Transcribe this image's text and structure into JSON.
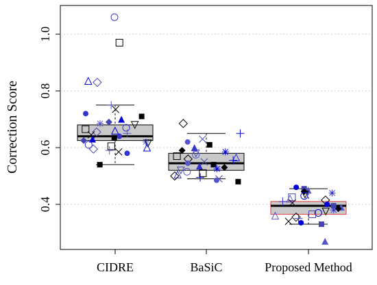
{
  "chart_data": {
    "type": "box",
    "title": "",
    "xlabel": "",
    "ylabel": "Correction Score",
    "ylim": [
      0.24,
      1.1
    ],
    "yticks": [
      0.4,
      0.6,
      0.8,
      1.0
    ],
    "ytick_labels": [
      "0.4",
      "0.6",
      "0.8",
      "1.0"
    ],
    "grid": "horizontal dotted",
    "categories": [
      "CIDRE",
      "BaSiC",
      "Proposed Method"
    ],
    "boxes": [
      {
        "category": "CIDRE",
        "whisker_low": 0.54,
        "q1": 0.625,
        "median": 0.64,
        "q3": 0.68,
        "whisker_high": 0.75,
        "fill": "#c0c0c0",
        "border": "#000000"
      },
      {
        "category": "BaSiC",
        "whisker_low": 0.49,
        "q1": 0.52,
        "median": 0.545,
        "q3": 0.58,
        "whisker_high": 0.65,
        "fill": "#c0c0c0",
        "border": "#000000"
      },
      {
        "category": "Proposed Method",
        "whisker_low": 0.33,
        "q1": 0.365,
        "median": 0.395,
        "q3": 0.41,
        "whisker_high": 0.455,
        "fill": "#c0c0c0",
        "border": "#e04040"
      }
    ],
    "points": [
      {
        "category": "CIDRE",
        "values": [
          1.06,
          0.97,
          0.835,
          0.83,
          0.75,
          0.735,
          0.72,
          0.71,
          0.7,
          0.69,
          0.685,
          0.68,
          0.67,
          0.665,
          0.66,
          0.655,
          0.65,
          0.645,
          0.64,
          0.635,
          0.63,
          0.625,
          0.62,
          0.615,
          0.61,
          0.605,
          0.6,
          0.595,
          0.59,
          0.585,
          0.58,
          0.54
        ]
      },
      {
        "category": "BaSiC",
        "values": [
          0.685,
          0.65,
          0.63,
          0.62,
          0.61,
          0.6,
          0.59,
          0.585,
          0.58,
          0.575,
          0.57,
          0.565,
          0.56,
          0.555,
          0.55,
          0.545,
          0.54,
          0.535,
          0.53,
          0.525,
          0.52,
          0.515,
          0.51,
          0.505,
          0.5,
          0.495,
          0.49,
          0.485,
          0.48
        ]
      },
      {
        "category": "Proposed Method",
        "values": [
          0.46,
          0.455,
          0.45,
          0.445,
          0.44,
          0.435,
          0.43,
          0.425,
          0.42,
          0.415,
          0.41,
          0.405,
          0.4,
          0.395,
          0.39,
          0.385,
          0.38,
          0.375,
          0.37,
          0.365,
          0.36,
          0.355,
          0.35,
          0.34,
          0.335,
          0.33,
          0.27
        ]
      }
    ]
  }
}
